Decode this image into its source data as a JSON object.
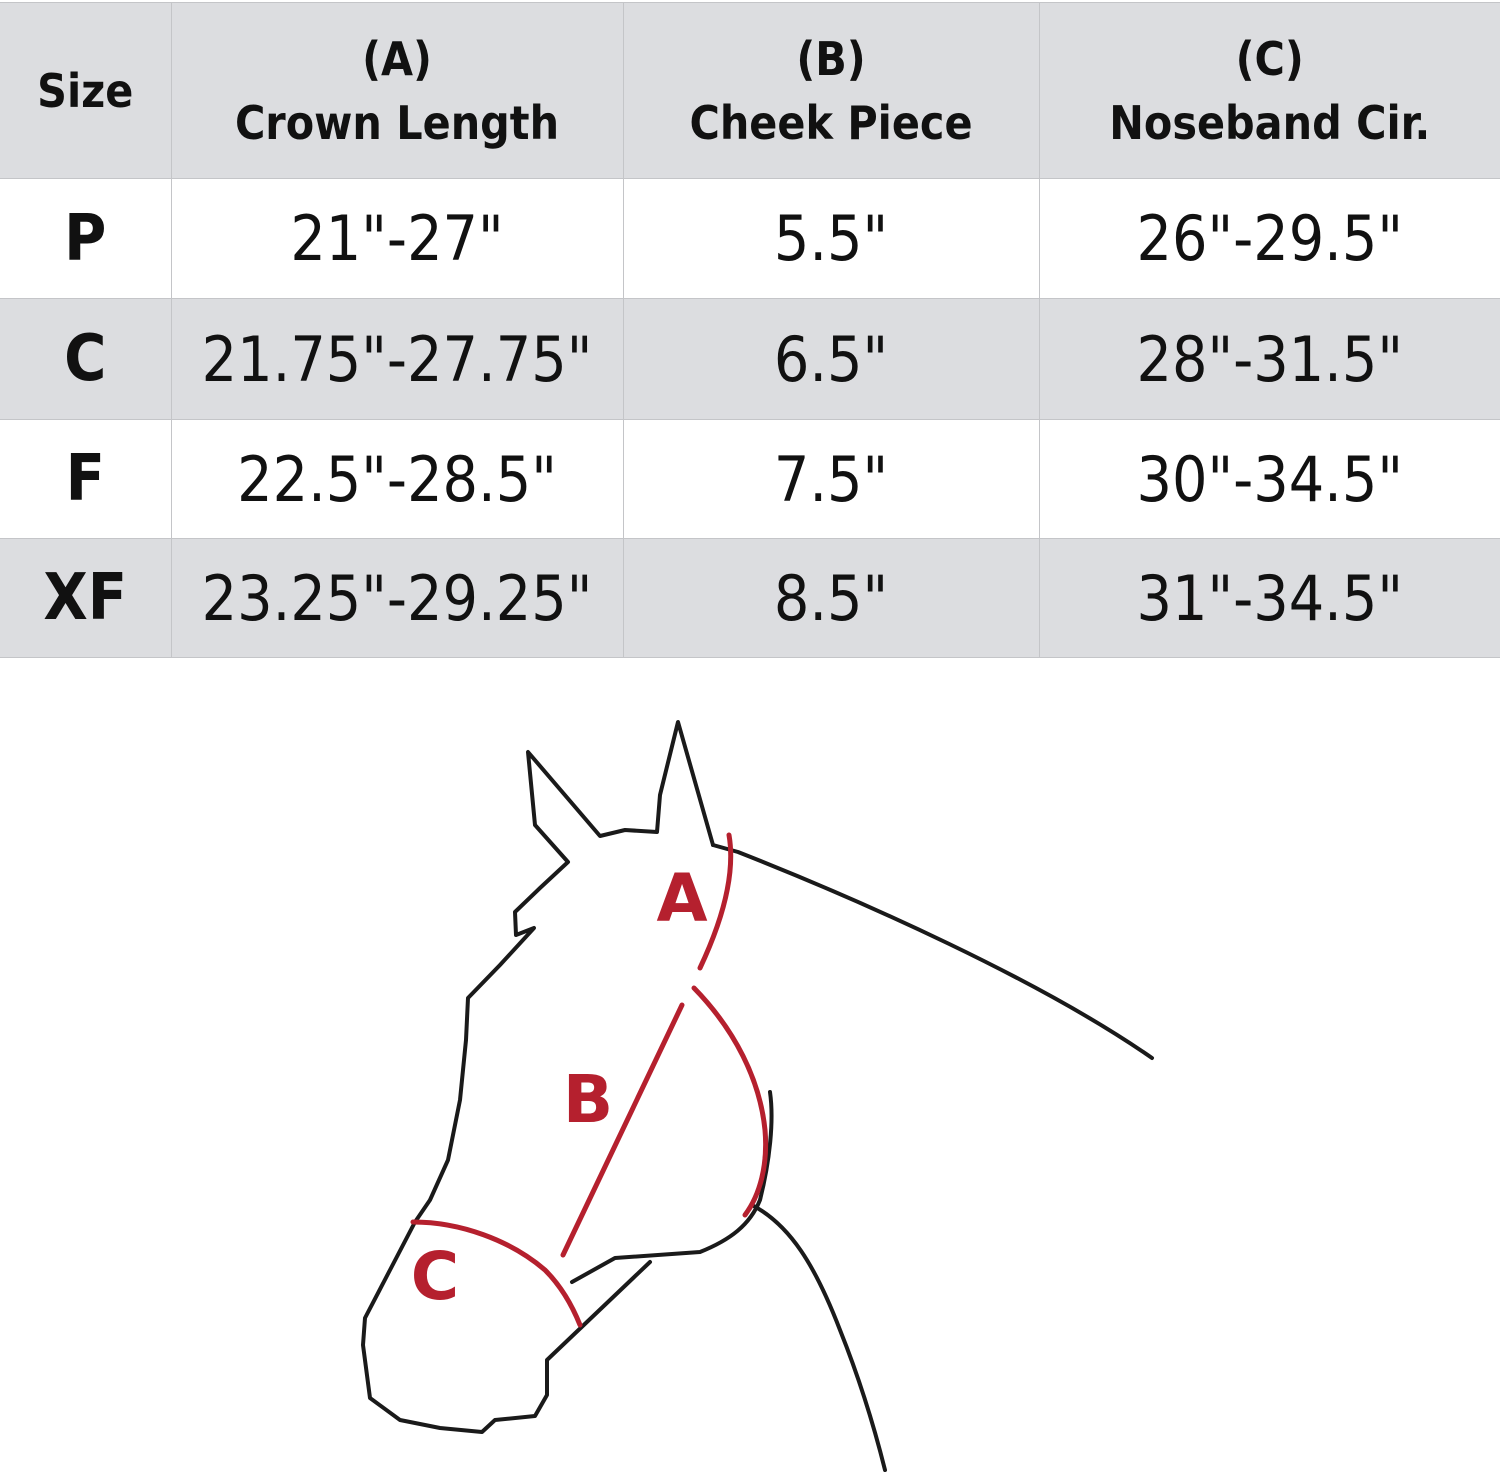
{
  "table": {
    "headers": [
      {
        "letter": "",
        "label": "Size"
      },
      {
        "letter": "(A)",
        "label": "Crown Length"
      },
      {
        "letter": "(B)",
        "label": "Cheek Piece"
      },
      {
        "letter": "(C)",
        "label": "Noseband Cir."
      }
    ],
    "rows": [
      [
        "P",
        "21\"-27\"",
        "5.5\"",
        "26\"-29.5\""
      ],
      [
        "C",
        "21.75\"-27.75\"",
        "6.5\"",
        "28\"-31.5\""
      ],
      [
        "F",
        "22.5\"-28.5\"",
        "7.5\"",
        "30\"-34.5\""
      ],
      [
        "XF",
        "23.25\"-29.25\"",
        "8.5\"",
        "31\"-34.5\""
      ]
    ]
  },
  "diagram": {
    "labels": {
      "a": "A",
      "b": "B",
      "c": "C"
    },
    "accent_color": "#b5202e",
    "outline_color": "#1a1a1a"
  }
}
